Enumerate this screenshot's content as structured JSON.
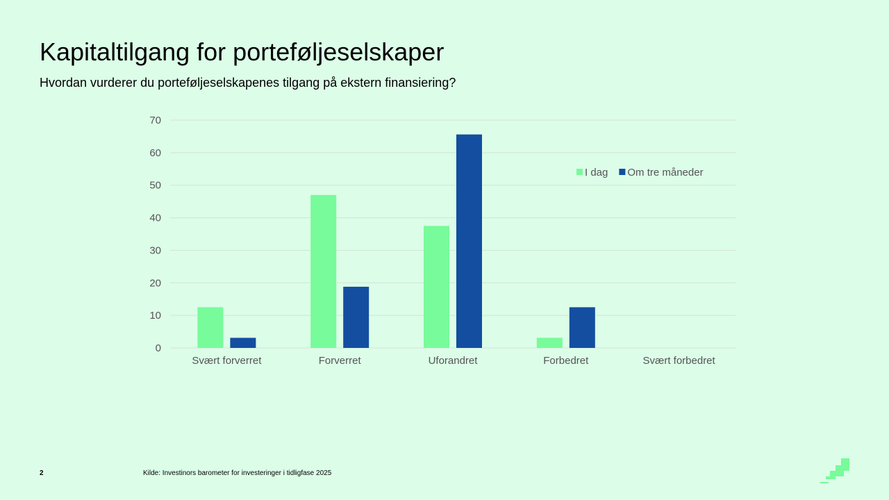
{
  "slide": {
    "title": "Kapitaltilgang for porteføljeselskaper",
    "subtitle": "Hvordan vurderer du porteføljeselskapenes tilgang på ekstern finansiering?",
    "page_number": "2",
    "source": "Kilde: Investinors barometer for investeringer i tidligfase 2025"
  },
  "colors": {
    "background": "#dcfde8",
    "series_1": "#78fb9a",
    "series_2": "#134ea0",
    "gridline": "#d3e3d8",
    "axis_text": "#555555"
  },
  "chart_data": {
    "type": "bar",
    "title": "",
    "xlabel": "",
    "ylabel": "",
    "categories": [
      "Svært forverret",
      "Forverret",
      "Uforandret",
      "Forbedret",
      "Svært forbedret"
    ],
    "series": [
      {
        "name": "I dag",
        "values": [
          12.5,
          47,
          37.5,
          3.1,
          0
        ]
      },
      {
        "name": "Om tre måneder",
        "values": [
          3.1,
          18.8,
          65.6,
          12.5,
          0
        ]
      }
    ],
    "ylim": [
      0,
      70
    ],
    "yticks": [
      0,
      10,
      20,
      30,
      40,
      50,
      60,
      70
    ],
    "grid": true,
    "legend_position": "top-right"
  },
  "icons": {
    "logo": "stair-step-logo"
  }
}
